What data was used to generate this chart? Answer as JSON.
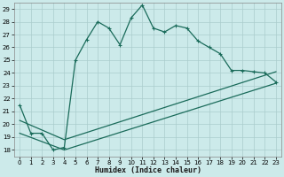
{
  "title": "",
  "xlabel": "Humidex (Indice chaleur)",
  "bg_color": "#cceaea",
  "grid_color": "#aacccc",
  "line_color": "#1a6b5a",
  "xlim": [
    -0.5,
    23.5
  ],
  "ylim": [
    17.5,
    29.5
  ],
  "xticks": [
    0,
    1,
    2,
    3,
    4,
    5,
    6,
    7,
    8,
    9,
    10,
    11,
    12,
    13,
    14,
    15,
    16,
    17,
    18,
    19,
    20,
    21,
    22,
    23
  ],
  "yticks": [
    18,
    19,
    20,
    21,
    22,
    23,
    24,
    25,
    26,
    27,
    28,
    29
  ],
  "line1_x": [
    0,
    1,
    2,
    3,
    4,
    5,
    6,
    7,
    8,
    9,
    10,
    11,
    12,
    13,
    14,
    15,
    16,
    17,
    18,
    19,
    20,
    21,
    22,
    23
  ],
  "line1_y": [
    21.5,
    19.3,
    19.3,
    18.0,
    18.2,
    25.0,
    26.6,
    28.0,
    27.5,
    26.2,
    28.3,
    29.3,
    27.5,
    27.2,
    27.7,
    27.5,
    26.5,
    26.0,
    25.5,
    24.2,
    24.2,
    24.1,
    24.0,
    23.3
  ],
  "line2_x": [
    0,
    4,
    23
  ],
  "line2_y": [
    20.3,
    18.8,
    24.1
  ],
  "line3_x": [
    0,
    4,
    23
  ],
  "line3_y": [
    19.3,
    18.0,
    23.2
  ]
}
